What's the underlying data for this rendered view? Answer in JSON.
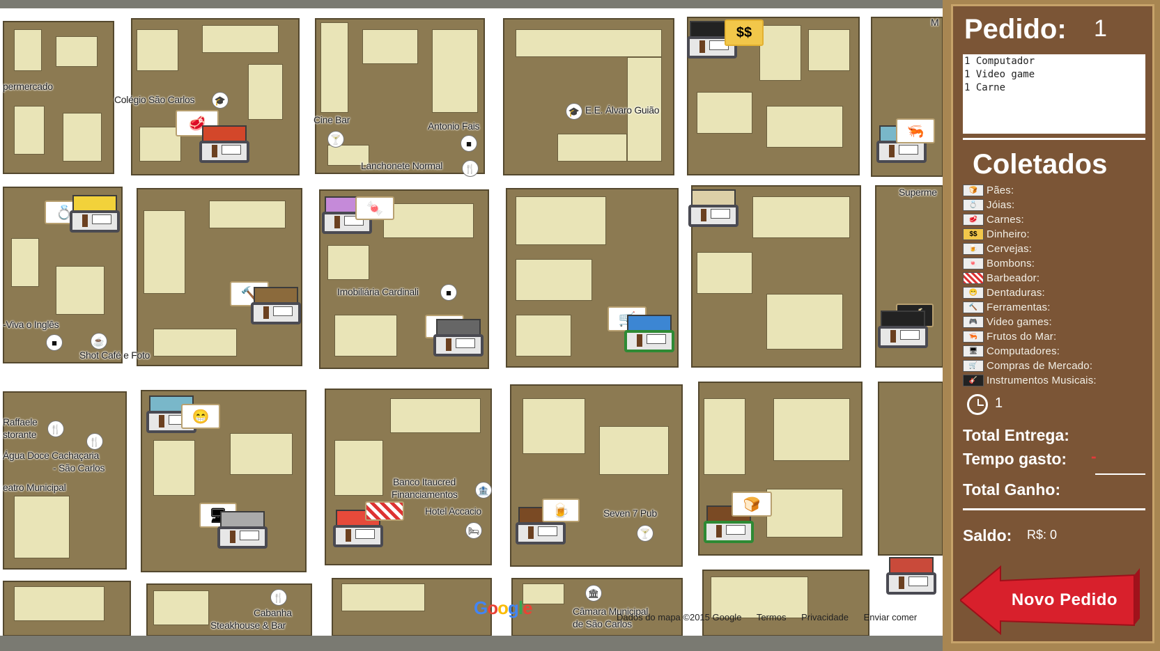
{
  "map": {
    "labels": {
      "supermercado_left": "permercado",
      "colegio": "Colégio São Carlos",
      "cine_bar": "Cine Bar",
      "antonio_fais": "Antonio Fais",
      "lanchonete": "Lanchonete Normal",
      "ee_alvaro": "E.E. Álvaro Guião",
      "m_right": "M",
      "supermercado_right": "Superme",
      "imobiliaria": "Imobiliária Cardinali",
      "viva_ingles": "-Viva o Inglês",
      "shot_cafe": "Shot Café e Foto",
      "raffaele_1": "Raffaele",
      "raffaele_2": "storante",
      "agua_doce_1": "Água Doce Cachaçaria",
      "agua_doce_2": "- São Carlos",
      "teatro": "eatro Municipal",
      "banco_1": "Banco Itaucred",
      "banco_2": "Financiamentos",
      "hotel": "Hotel Accacio",
      "seven_pub": "Seven 7 Pub",
      "cabanha_1": "Cabanha",
      "cabanha_2": "Steakhouse & Bar",
      "camara_1": "Câmara Municipal",
      "camara_2": "de São Carlos"
    },
    "google_logo": "Google",
    "footer": {
      "data": "Dados do mapa ©2015 Google",
      "terms": "Termos",
      "privacy": "Privacidade",
      "report": "Enviar comer"
    },
    "money_sign": "$$"
  },
  "panel": {
    "order_title": "Pedido:",
    "order_number": "1",
    "order_items": [
      "1 Computador",
      "1 Video game",
      "1 Carne"
    ],
    "collected_title": "Coletados",
    "collected": [
      {
        "icon": "bread-icon",
        "label": "Pães:"
      },
      {
        "icon": "jewel-icon",
        "label": "Jóias:"
      },
      {
        "icon": "meat-icon",
        "label": "Carnes:"
      },
      {
        "icon": "money-icon",
        "label": "Dinheiro:"
      },
      {
        "icon": "beer-icon",
        "label": "Cervejas:"
      },
      {
        "icon": "candy-icon",
        "label": "Bombons:"
      },
      {
        "icon": "razor-icon",
        "label": "Barbeador:"
      },
      {
        "icon": "dentures-icon",
        "label": "Dentaduras:"
      },
      {
        "icon": "tools-icon",
        "label": "Ferramentas:"
      },
      {
        "icon": "videogame-icon",
        "label": "Video games:"
      },
      {
        "icon": "seafood-icon",
        "label": "Frutos do Mar:"
      },
      {
        "icon": "computer-icon",
        "label": "Computadores:"
      },
      {
        "icon": "grocery-icon",
        "label": "Compras de Mercado:"
      },
      {
        "icon": "guitar-icon",
        "label": "Instrumentos Musicais:"
      }
    ],
    "clock_value": "1",
    "total_delivery": "Total Entrega:",
    "time_spent": "Tempo gasto:",
    "time_spent_value": "-",
    "total_earned": "Total Ganho:",
    "balance_label": "Saldo:",
    "balance_value": "R$: 0",
    "new_order": "Novo Pedido"
  },
  "colors": {
    "block": "#8c7a52",
    "building": "#e9e4b7",
    "board": "#7b5536",
    "button_red": "#d8202c"
  }
}
